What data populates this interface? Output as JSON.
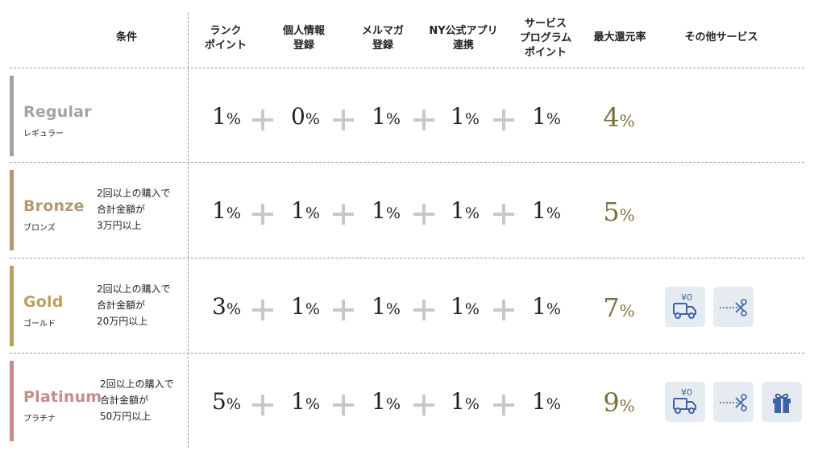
{
  "headers": {
    "condition": "条件",
    "rank_point": "ランク\nポイント",
    "personal_info": "個人情報\n登録",
    "mail_magazine": "メルマガ\n登録",
    "ny_app": "NY公式アプリ\n連携",
    "service_program": "サービス\nプログラム\nポイント",
    "max_rate": "最大還元率",
    "other_services": "その他サービス"
  },
  "tiers": [
    {
      "name": "Regular",
      "kana": "レギュラー",
      "color": "#a3a3a3",
      "condition": "",
      "points": [
        "1",
        "0",
        "1",
        "1",
        "1"
      ],
      "max": "4",
      "services": []
    },
    {
      "name": "Bronze",
      "kana": "ブロンズ",
      "color": "#b39872",
      "condition": "2回以上の購入で\n合計金額が\n3万円以上",
      "points": [
        "1",
        "1",
        "1",
        "1",
        "1"
      ],
      "max": "5",
      "services": []
    },
    {
      "name": "Gold",
      "kana": "ゴールド",
      "color": "#b9a25e",
      "condition": "2回以上の購入で\n合計金額が\n20万円以上",
      "points": [
        "3",
        "1",
        "1",
        "1",
        "1"
      ],
      "max": "7",
      "services": [
        "free-shipping-truck-icon",
        "coupon-scissors-icon"
      ]
    },
    {
      "name": "Platinum",
      "kana": "プラチナ",
      "color": "#c78b8b",
      "condition": "2回以上の購入で\n合計金額が\n50万円以上",
      "points": [
        "5",
        "1",
        "1",
        "1",
        "1"
      ],
      "max": "9",
      "services": [
        "free-shipping-truck-icon",
        "coupon-scissors-icon",
        "gift-box-icon"
      ]
    }
  ],
  "percent_unit": "%",
  "yen_label": "¥0",
  "colors": {
    "max_rate": "#7b6d3c",
    "icon": "#3f63a3",
    "icon_bg": "#e6ebf2",
    "plus": "#c8c8c8"
  }
}
